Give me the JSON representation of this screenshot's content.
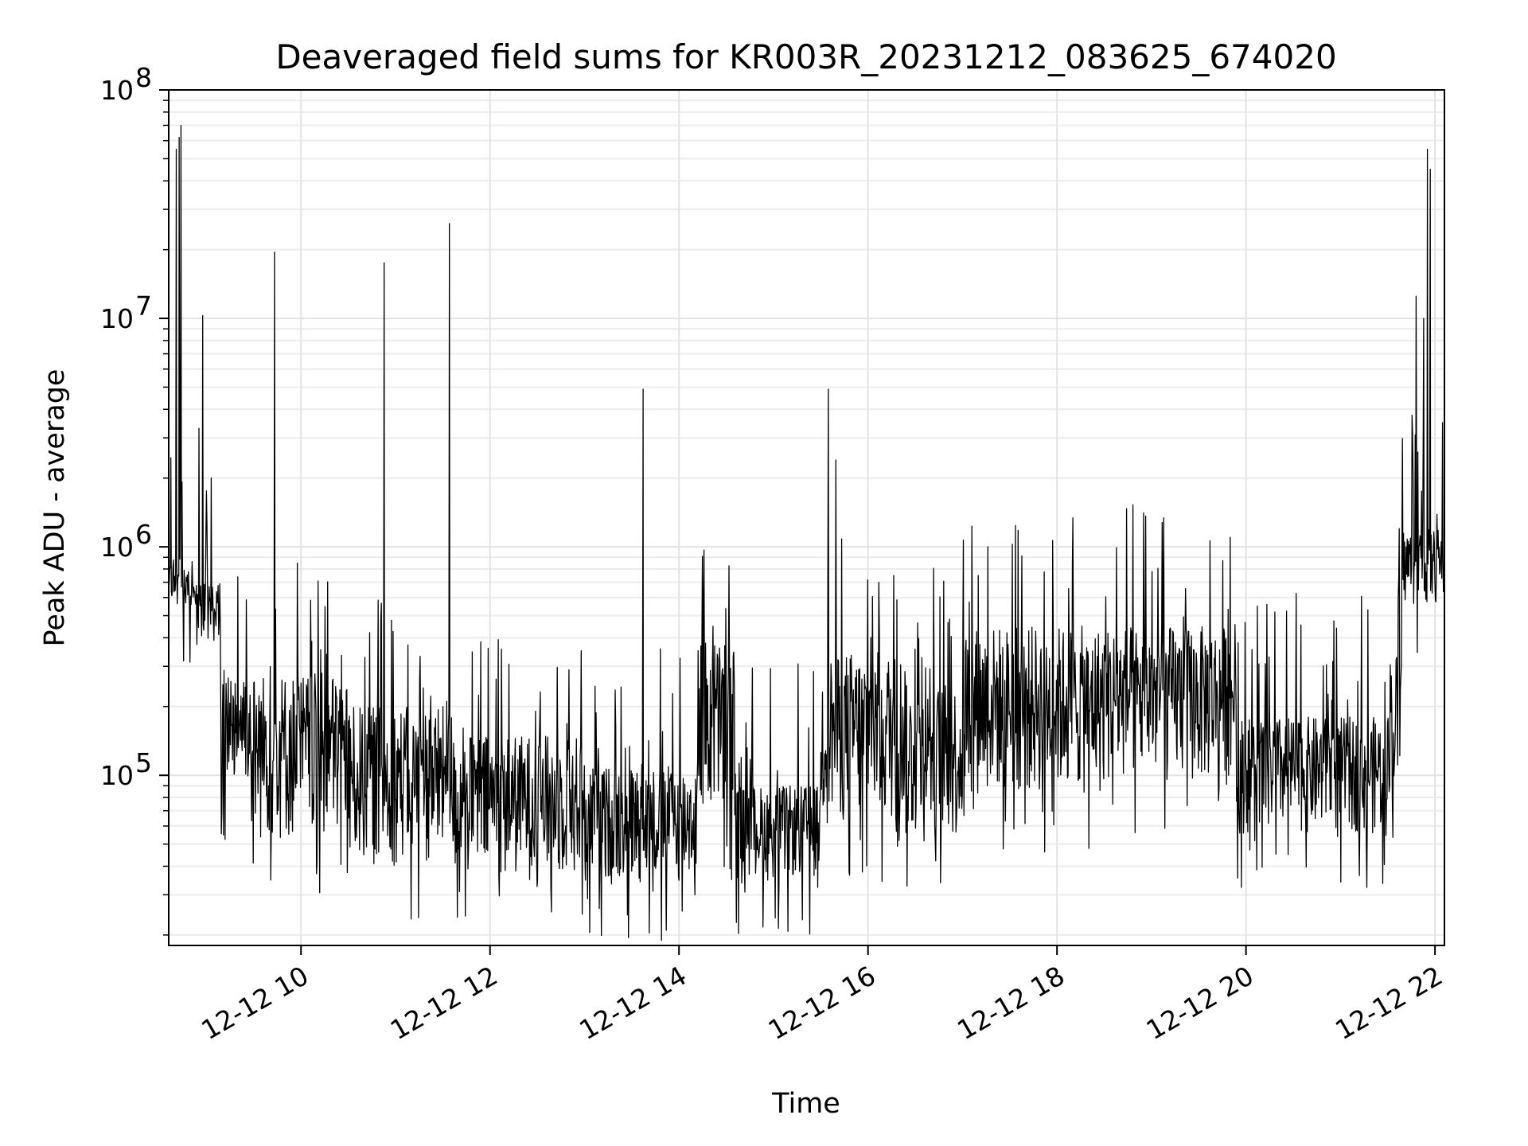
{
  "chart_data": {
    "type": "line",
    "title": "Deaveraged field sums for KR003R_20231212_083625_674020",
    "xlabel": "Time",
    "ylabel": "Peak ADU - average",
    "x_unit": "hours of 2023-12-12",
    "xlim": [
      8.6,
      22.1
    ],
    "ylim": [
      18000,
      100000000
    ],
    "yscale": "log",
    "grid": true,
    "legend": "none",
    "line_color": "#000000",
    "x_ticks": [
      {
        "value": 10,
        "label": "12-12 10"
      },
      {
        "value": 12,
        "label": "12-12 12"
      },
      {
        "value": 14,
        "label": "12-12 14"
      },
      {
        "value": 16,
        "label": "12-12 16"
      },
      {
        "value": 18,
        "label": "12-12 18"
      },
      {
        "value": 20,
        "label": "12-12 20"
      },
      {
        "value": 22,
        "label": "12-12 22"
      }
    ],
    "y_ticks": [
      {
        "value": 100000,
        "base": "10",
        "exp": "5"
      },
      {
        "value": 1000000,
        "base": "10",
        "exp": "6"
      },
      {
        "value": 10000000,
        "base": "10",
        "exp": "7"
      },
      {
        "value": 100000000,
        "base": "10",
        "exp": "8"
      }
    ],
    "segments": [
      {
        "t0": 8.6,
        "t1": 8.85,
        "hi": 900000,
        "lo": 550000
      },
      {
        "t0": 8.85,
        "t1": 9.15,
        "hi": 700000,
        "lo": 380000
      },
      {
        "t0": 9.15,
        "t1": 9.45,
        "hi": 300000,
        "lo": 90000
      },
      {
        "t0": 9.45,
        "t1": 10.5,
        "hi": 280000,
        "lo": 50000
      },
      {
        "t0": 10.5,
        "t1": 11.6,
        "hi": 200000,
        "lo": 40000
      },
      {
        "t0": 11.6,
        "t1": 13.0,
        "hi": 150000,
        "lo": 35000
      },
      {
        "t0": 13.0,
        "t1": 14.2,
        "hi": 110000,
        "lo": 33000
      },
      {
        "t0": 14.2,
        "t1": 14.6,
        "hi": 400000,
        "lo": 60000
      },
      {
        "t0": 14.6,
        "t1": 15.5,
        "hi": 90000,
        "lo": 35000
      },
      {
        "t0": 15.5,
        "t1": 16.4,
        "hi": 350000,
        "lo": 60000
      },
      {
        "t0": 16.4,
        "t1": 17.0,
        "hi": 250000,
        "lo": 50000
      },
      {
        "t0": 17.0,
        "t1": 18.5,
        "hi": 450000,
        "lo": 80000
      },
      {
        "t0": 18.5,
        "t1": 19.9,
        "hi": 450000,
        "lo": 90000
      },
      {
        "t0": 19.9,
        "t1": 21.5,
        "hi": 180000,
        "lo": 55000
      },
      {
        "t0": 21.5,
        "t1": 21.65,
        "hi": 350000,
        "lo": 80000
      },
      {
        "t0": 21.65,
        "t1": 22.1,
        "hi": 1200000,
        "lo": 550000
      }
    ],
    "peaks": [
      {
        "t": 8.68,
        "y": 55000000
      },
      {
        "t": 8.71,
        "y": 62000000
      },
      {
        "t": 8.73,
        "y": 70000000
      },
      {
        "t": 8.96,
        "y": 10300000
      },
      {
        "t": 8.92,
        "y": 3300000
      },
      {
        "t": 9.05,
        "y": 2000000
      },
      {
        "t": 9.72,
        "y": 19500000
      },
      {
        "t": 10.88,
        "y": 17500000
      },
      {
        "t": 11.57,
        "y": 26000000
      },
      {
        "t": 13.62,
        "y": 4900000
      },
      {
        "t": 15.58,
        "y": 4900000
      },
      {
        "t": 15.66,
        "y": 2400000
      },
      {
        "t": 21.8,
        "y": 12500000
      },
      {
        "t": 21.88,
        "y": 10000000
      },
      {
        "t": 21.92,
        "y": 55000000
      },
      {
        "t": 21.95,
        "y": 45000000
      },
      {
        "t": 22.08,
        "y": 3500000
      }
    ]
  }
}
